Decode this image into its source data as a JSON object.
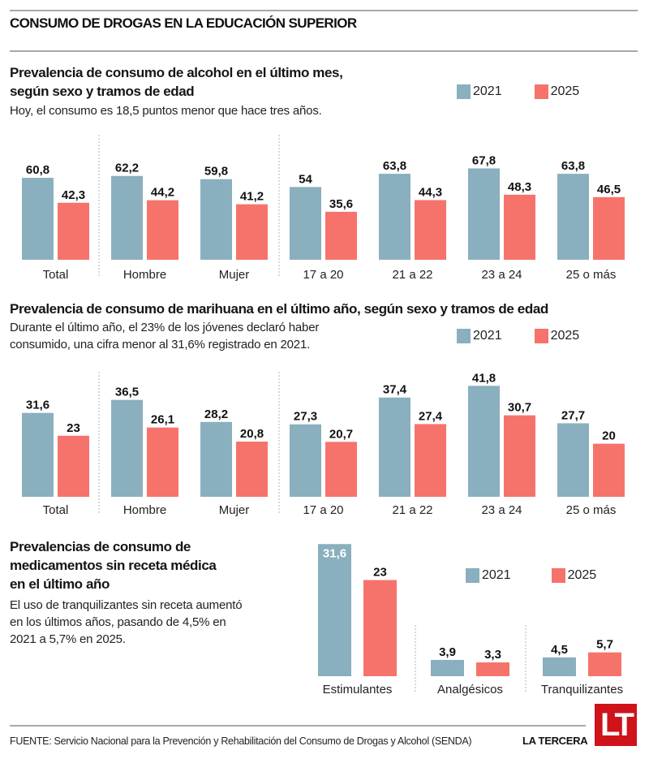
{
  "header": {
    "title": "CONSUMO DE DROGAS EN LA EDUCACIÓN SUPERIOR"
  },
  "colors": {
    "y2021": "#8aafbe",
    "y2025": "#f6736b",
    "rule": "#a9a9a9",
    "logo_red": "#d0121b"
  },
  "legend": [
    {
      "label": "2021",
      "color": "#8aafbe"
    },
    {
      "label": "2025",
      "color": "#f6736b"
    }
  ],
  "sections": {
    "alcohol": {
      "title_line1": "Prevalencia de consumo de alcohol en el último mes,",
      "title_line2": "según sexo y tramos de edad",
      "subtitle": "Hoy, el consumo es 18,5 puntos menor que hace tres años."
    },
    "marihuana": {
      "title": "Prevalencia de consumo de marihuana en el último año, según sexo y tramos de edad",
      "subtitle_line1": "Durante el último año, el 23% de los jóvenes declaró haber",
      "subtitle_line2": "consumido,  una cifra menor al 31,6%  registrado en 2021."
    },
    "medicamentos": {
      "title_line1": "Prevalencias de consumo de",
      "title_line2": "medicamentos sin receta médica",
      "title_line3": "en el último año",
      "subtitle_line1": "El uso de tranquilizantes sin receta aumentó",
      "subtitle_line2": "en los últimos años, pasando de 4,5% en",
      "subtitle_line3": "2021 a 5,7% en 2025."
    }
  },
  "chart_data": [
    {
      "type": "bar",
      "title": "Prevalencia de consumo de alcohol en el último mes, según sexo y tramos de edad",
      "categories": [
        "Total",
        "Hombre",
        "Mujer",
        "17 a 20",
        "21 a 22",
        "23 a 24",
        "25 o más"
      ],
      "series": [
        {
          "name": "2021",
          "values": [
            60.8,
            62.2,
            59.8,
            54,
            63.8,
            67.8,
            63.8
          ],
          "labels": [
            "60,8",
            "62,2",
            "59,8",
            "54",
            "63,8",
            "67,8",
            "63,8"
          ]
        },
        {
          "name": "2025",
          "values": [
            42.3,
            44.2,
            41.2,
            35.6,
            44.3,
            48.3,
            46.5
          ],
          "labels": [
            "42,3",
            "44,2",
            "41,2",
            "35,6",
            "44,3",
            "48,3",
            "46,5"
          ]
        }
      ],
      "group_separators_after": [
        "Total",
        "Mujer"
      ],
      "xlabel": "",
      "ylabel": "",
      "ylim": [
        0,
        70
      ],
      "grid": false,
      "legend": "top-right"
    },
    {
      "type": "bar",
      "title": "Prevalencia de consumo de marihuana en el último año, según sexo y tramos de edad",
      "categories": [
        "Total",
        "Hombre",
        "Mujer",
        "17 a 20",
        "21 a 22",
        "23 a 24",
        "25 o más"
      ],
      "series": [
        {
          "name": "2021",
          "values": [
            31.6,
            36.5,
            28.2,
            27.3,
            37.4,
            41.8,
            27.7
          ],
          "labels": [
            "31,6",
            "36,5",
            "28,2",
            "27,3",
            "37,4",
            "41,8",
            "27,7"
          ]
        },
        {
          "name": "2025",
          "values": [
            23,
            26.1,
            20.8,
            20.7,
            27.4,
            30.7,
            20
          ],
          "labels": [
            "23",
            "26,1",
            "20,8",
            "20,7",
            "27,4",
            "30,7",
            "20"
          ]
        }
      ],
      "group_separators_after": [
        "Total",
        "Mujer"
      ],
      "xlabel": "",
      "ylabel": "",
      "ylim": [
        0,
        45
      ],
      "grid": false,
      "legend": "top-right"
    },
    {
      "type": "bar",
      "title": "Prevalencias de consumo de medicamentos sin receta médica en el último año",
      "categories": [
        "Estimulantes",
        "Analgésicos",
        "Tranquilizantes"
      ],
      "series": [
        {
          "name": "2021",
          "values": [
            31.6,
            3.9,
            4.5
          ],
          "labels": [
            "31,6",
            "3,9",
            "4,5"
          ]
        },
        {
          "name": "2025",
          "values": [
            23,
            3.3,
            5.7
          ],
          "labels": [
            "23",
            "3,3",
            "5,7"
          ]
        }
      ],
      "group_separators_after": [
        "Estimulantes",
        "Analgésicos"
      ],
      "xlabel": "",
      "ylabel": "",
      "ylim": [
        0,
        32
      ],
      "grid": false,
      "legend": "top-right"
    }
  ],
  "footer": {
    "source": "FUENTE: Servicio Nacional para la Prevención y Rehabilitación del Consumo de Drogas y Alcohol (SENDA)",
    "brand": "LA TERCERA",
    "logo_text": "LT"
  }
}
